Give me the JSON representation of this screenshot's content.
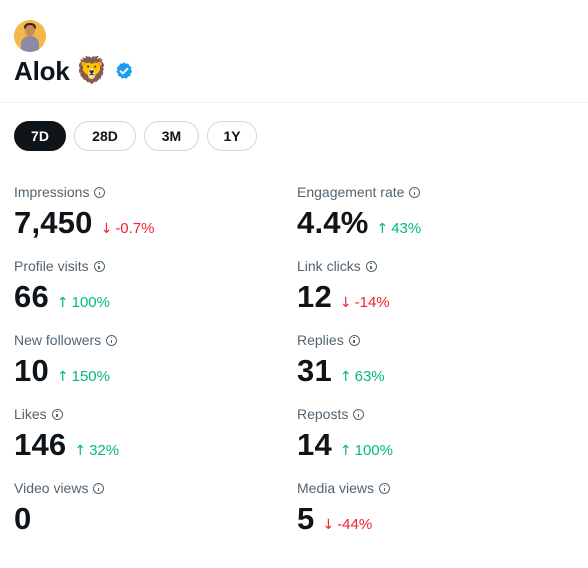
{
  "profile": {
    "name": "Alok",
    "emoji": "🦁",
    "verified": true
  },
  "tabs": [
    {
      "label": "7D",
      "active": true
    },
    {
      "label": "28D",
      "active": false
    },
    {
      "label": "3M",
      "active": false
    },
    {
      "label": "1Y",
      "active": false
    }
  ],
  "metrics": {
    "impressions": {
      "label": "Impressions",
      "value": "7,450",
      "change": "-0.7%",
      "direction": "down"
    },
    "engagement_rate": {
      "label": "Engagement rate",
      "value": "4.4%",
      "change": "43%",
      "direction": "up"
    },
    "profile_visits": {
      "label": "Profile visits",
      "value": "66",
      "change": "100%",
      "direction": "up"
    },
    "link_clicks": {
      "label": "Link clicks",
      "value": "12",
      "change": "-14%",
      "direction": "down"
    },
    "new_followers": {
      "label": "New followers",
      "value": "10",
      "change": "150%",
      "direction": "up"
    },
    "replies": {
      "label": "Replies",
      "value": "31",
      "change": "63%",
      "direction": "up"
    },
    "likes": {
      "label": "Likes",
      "value": "146",
      "change": "32%",
      "direction": "up"
    },
    "reposts": {
      "label": "Reposts",
      "value": "14",
      "change": "100%",
      "direction": "up"
    },
    "video_views": {
      "label": "Video views",
      "value": "0"
    },
    "media_views": {
      "label": "Media views",
      "value": "5",
      "change": "-44%",
      "direction": "down"
    }
  },
  "colors": {
    "up": "#00ba7c",
    "down": "#f4212e",
    "verified": "#1d9bf0",
    "active_tab": "#0f1419"
  }
}
